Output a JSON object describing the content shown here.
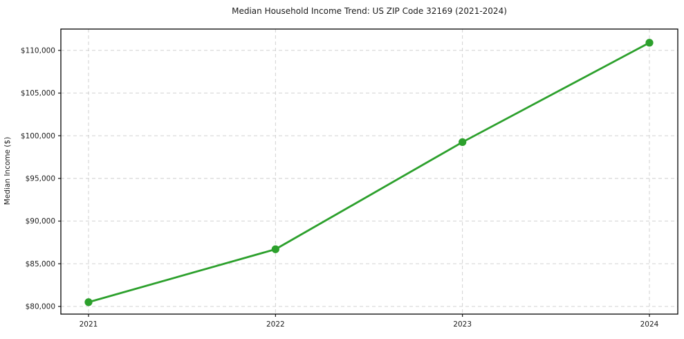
{
  "title": "Median Household Income Trend: US ZIP Code 32169 (2021-2024)",
  "chart_data": {
    "type": "line",
    "title": "Median Household Income Trend: US ZIP Code 32169 (2021-2024)",
    "xlabel": "",
    "ylabel": "Median Income ($)",
    "x": [
      2021,
      2022,
      2023,
      2024
    ],
    "categories": [
      "2021",
      "2022",
      "2023",
      "2024"
    ],
    "series": [
      {
        "name": "Median Household Income",
        "values": [
          80500,
          86700,
          99250,
          110900
        ]
      }
    ],
    "yticks": [
      80000,
      85000,
      90000,
      95000,
      100000,
      105000,
      110000
    ],
    "ytick_labels": [
      "$80,000",
      "$85,000",
      "$90,000",
      "$95,000",
      "$100,000",
      "$105,000",
      "$110,000"
    ],
    "ylim": [
      79100,
      112500
    ],
    "grid": true,
    "grid_style": "dashed",
    "legend": "none",
    "colors": {
      "line": "#2ca02c",
      "marker": "#2ca02c",
      "grid": "#cccccc",
      "frame": "#000000",
      "text": "#1a1a1a",
      "background": "#ffffff"
    }
  }
}
